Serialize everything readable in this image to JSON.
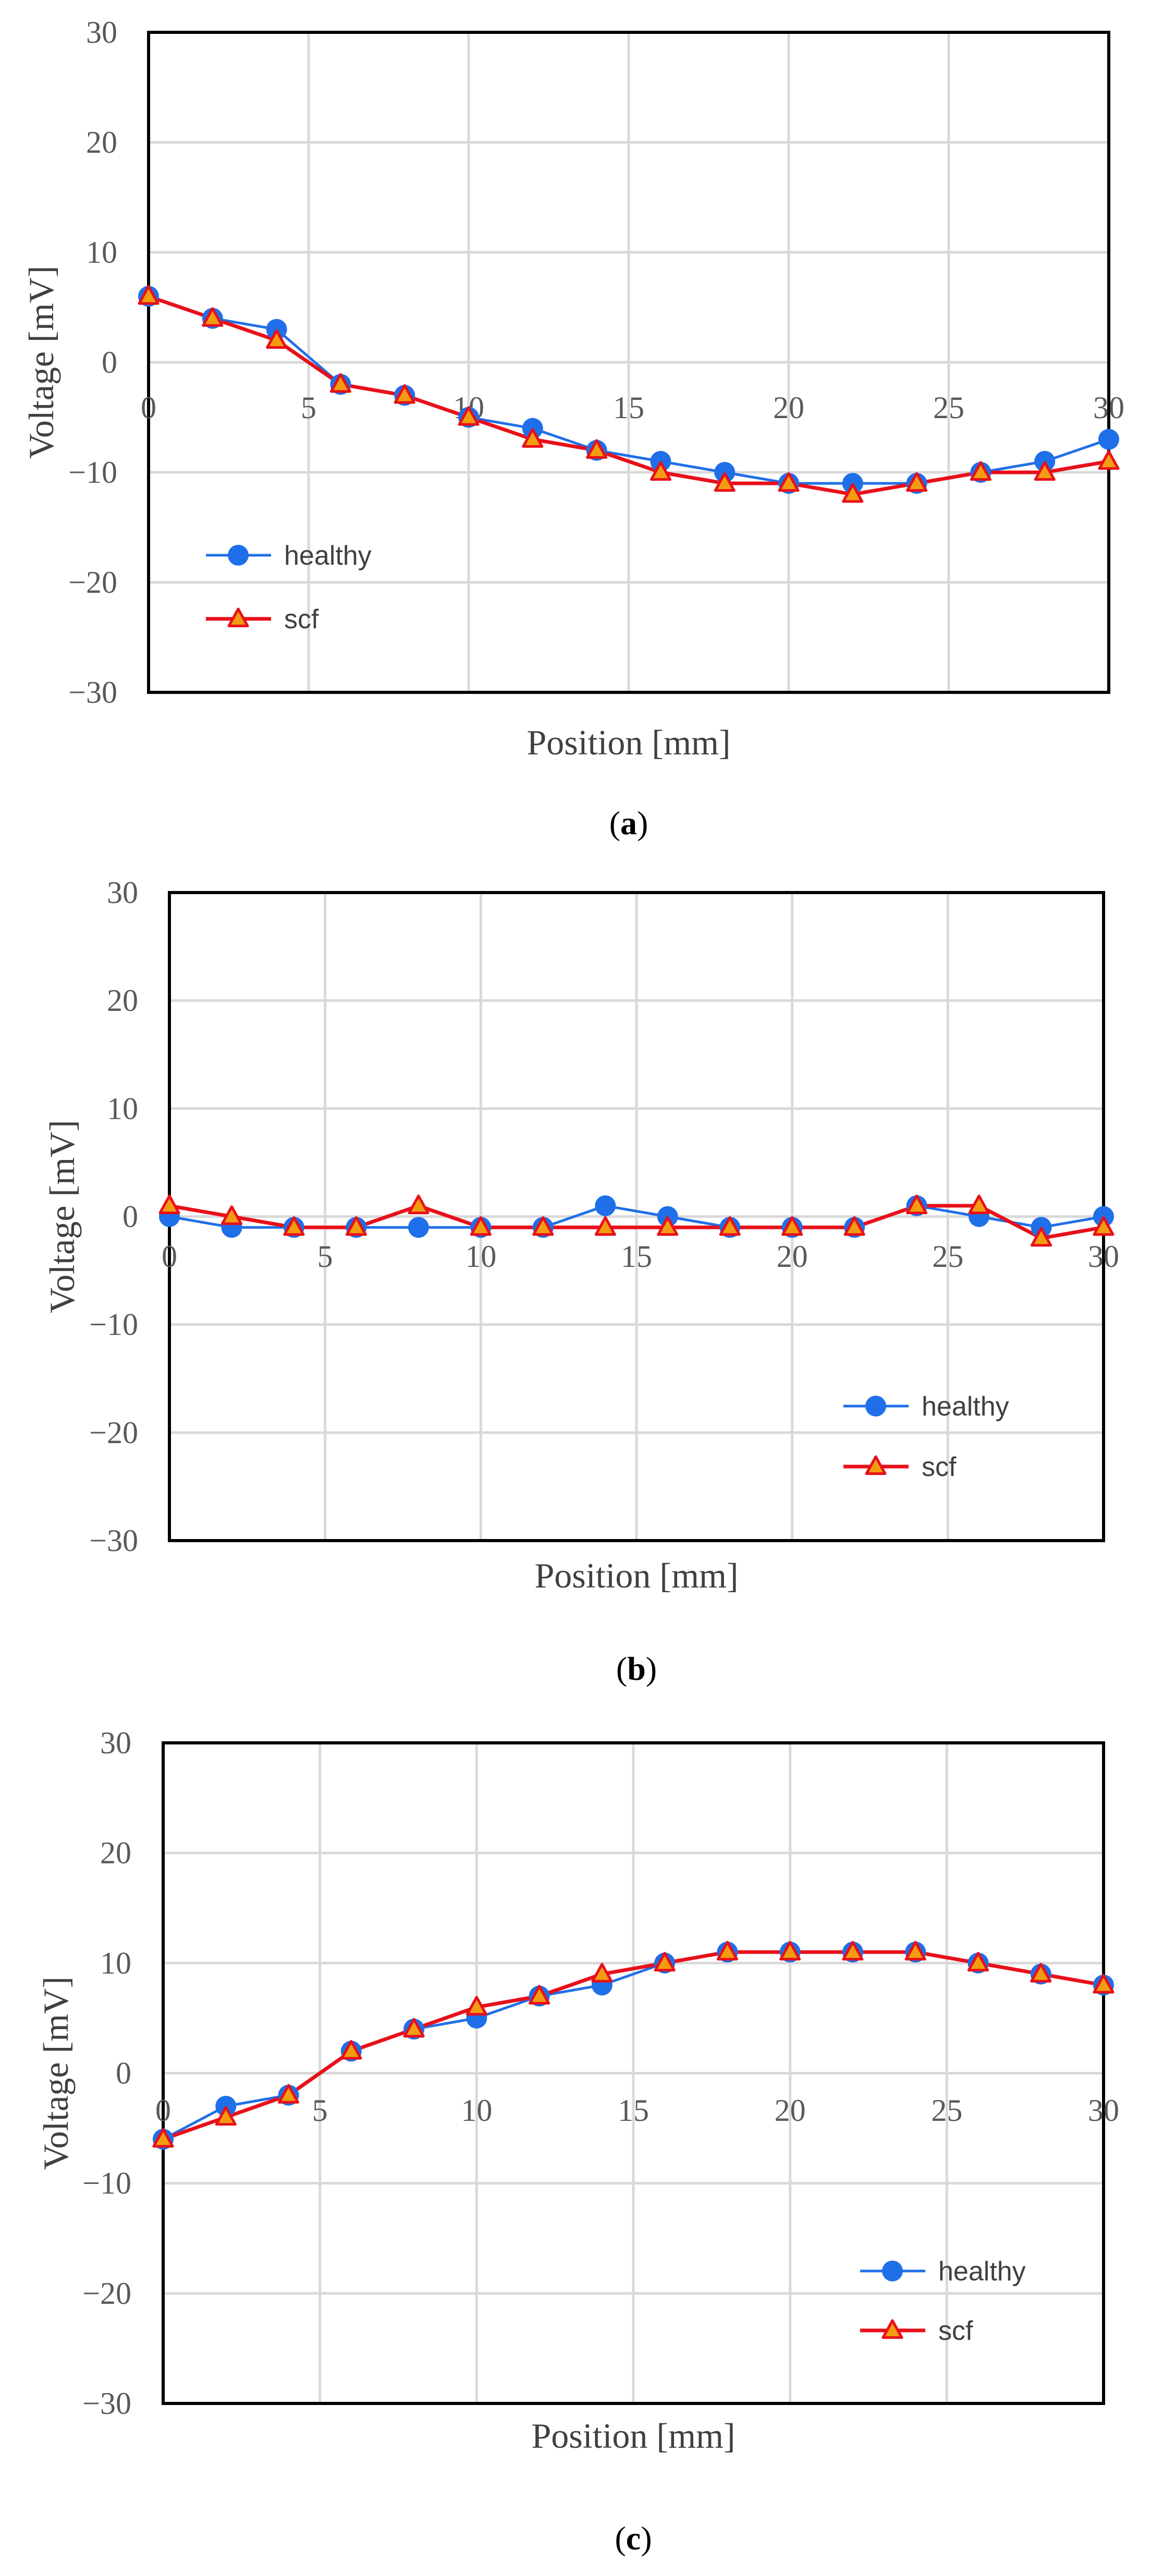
{
  "chart_data": [
    {
      "type": "line",
      "caption": "a",
      "xlabel": "Position [mm]",
      "ylabel": "Voltage [mV]",
      "xlim": [
        0,
        30
      ],
      "ylim": [
        -30,
        30
      ],
      "x_ticks": [
        "0",
        "5",
        "10",
        "15",
        "20",
        "25",
        "30"
      ],
      "y_ticks": [
        "30",
        "20",
        "10",
        "0",
        "−10",
        "−20",
        "−30"
      ],
      "legend_position": "bottom-left",
      "x": [
        0,
        2,
        4,
        6,
        8,
        10,
        12,
        14,
        16,
        18,
        20,
        22,
        24,
        26,
        28,
        30
      ],
      "series": [
        {
          "name": "healthy",
          "marker": "circle",
          "color": "#1f6fe8",
          "values": [
            6,
            4,
            3,
            -2,
            -3,
            -5,
            -6,
            -8,
            -9,
            -10,
            -11,
            -11,
            -11,
            -10,
            -9,
            -7
          ]
        },
        {
          "name": "scf",
          "marker": "triangle",
          "color": "#e8101a",
          "marker_fill": "#f39c12",
          "values": [
            6,
            4,
            2,
            -2,
            -3,
            -5,
            -7,
            -8,
            -10,
            -11,
            -11,
            -12,
            -11,
            -10,
            -10,
            -9
          ]
        }
      ]
    },
    {
      "type": "line",
      "caption": "b",
      "xlabel": "Position [mm]",
      "ylabel": "Voltage [mV]",
      "xlim": [
        0,
        30
      ],
      "ylim": [
        -30,
        30
      ],
      "x_ticks": [
        "0",
        "5",
        "10",
        "15",
        "20",
        "25",
        "30"
      ],
      "y_ticks": [
        "30",
        "20",
        "10",
        "0",
        "−10",
        "−20",
        "−30"
      ],
      "legend_position": "bottom-right",
      "x": [
        0,
        2,
        4,
        6,
        8,
        10,
        12,
        14,
        16,
        18,
        20,
        22,
        24,
        26,
        28,
        30
      ],
      "series": [
        {
          "name": "healthy",
          "marker": "circle",
          "color": "#1f6fe8",
          "values": [
            0,
            -1,
            -1,
            -1,
            -1,
            -1,
            -1,
            1,
            0,
            -1,
            -1,
            -1,
            1,
            0,
            -1,
            0
          ]
        },
        {
          "name": "scf",
          "marker": "triangle",
          "color": "#e8101a",
          "marker_fill": "#f39c12",
          "values": [
            1,
            0,
            -1,
            -1,
            1,
            -1,
            -1,
            -1,
            -1,
            -1,
            -1,
            -1,
            1,
            1,
            -2,
            -1
          ]
        }
      ]
    },
    {
      "type": "line",
      "caption": "c",
      "xlabel": "Position [mm]",
      "ylabel": "Voltage [mV]",
      "xlim": [
        0,
        30
      ],
      "ylim": [
        -30,
        30
      ],
      "x_ticks": [
        "0",
        "5",
        "10",
        "15",
        "20",
        "25",
        "30"
      ],
      "y_ticks": [
        "30",
        "20",
        "10",
        "0",
        "−10",
        "−20",
        "−30"
      ],
      "legend_position": "bottom-right",
      "x": [
        0,
        2,
        4,
        6,
        8,
        10,
        12,
        14,
        16,
        18,
        20,
        22,
        24,
        26,
        28,
        30
      ],
      "series": [
        {
          "name": "healthy",
          "marker": "circle",
          "color": "#1f6fe8",
          "values": [
            -6,
            -3,
            -2,
            2,
            4,
            5,
            7,
            8,
            10,
            11,
            11,
            11,
            11,
            10,
            9,
            8
          ]
        },
        {
          "name": "scf",
          "marker": "triangle",
          "color": "#e8101a",
          "marker_fill": "#f39c12",
          "values": [
            -6,
            -4,
            -2,
            2,
            4,
            6,
            7,
            9,
            10,
            11,
            11,
            11,
            11,
            10,
            9,
            8
          ]
        }
      ]
    }
  ]
}
